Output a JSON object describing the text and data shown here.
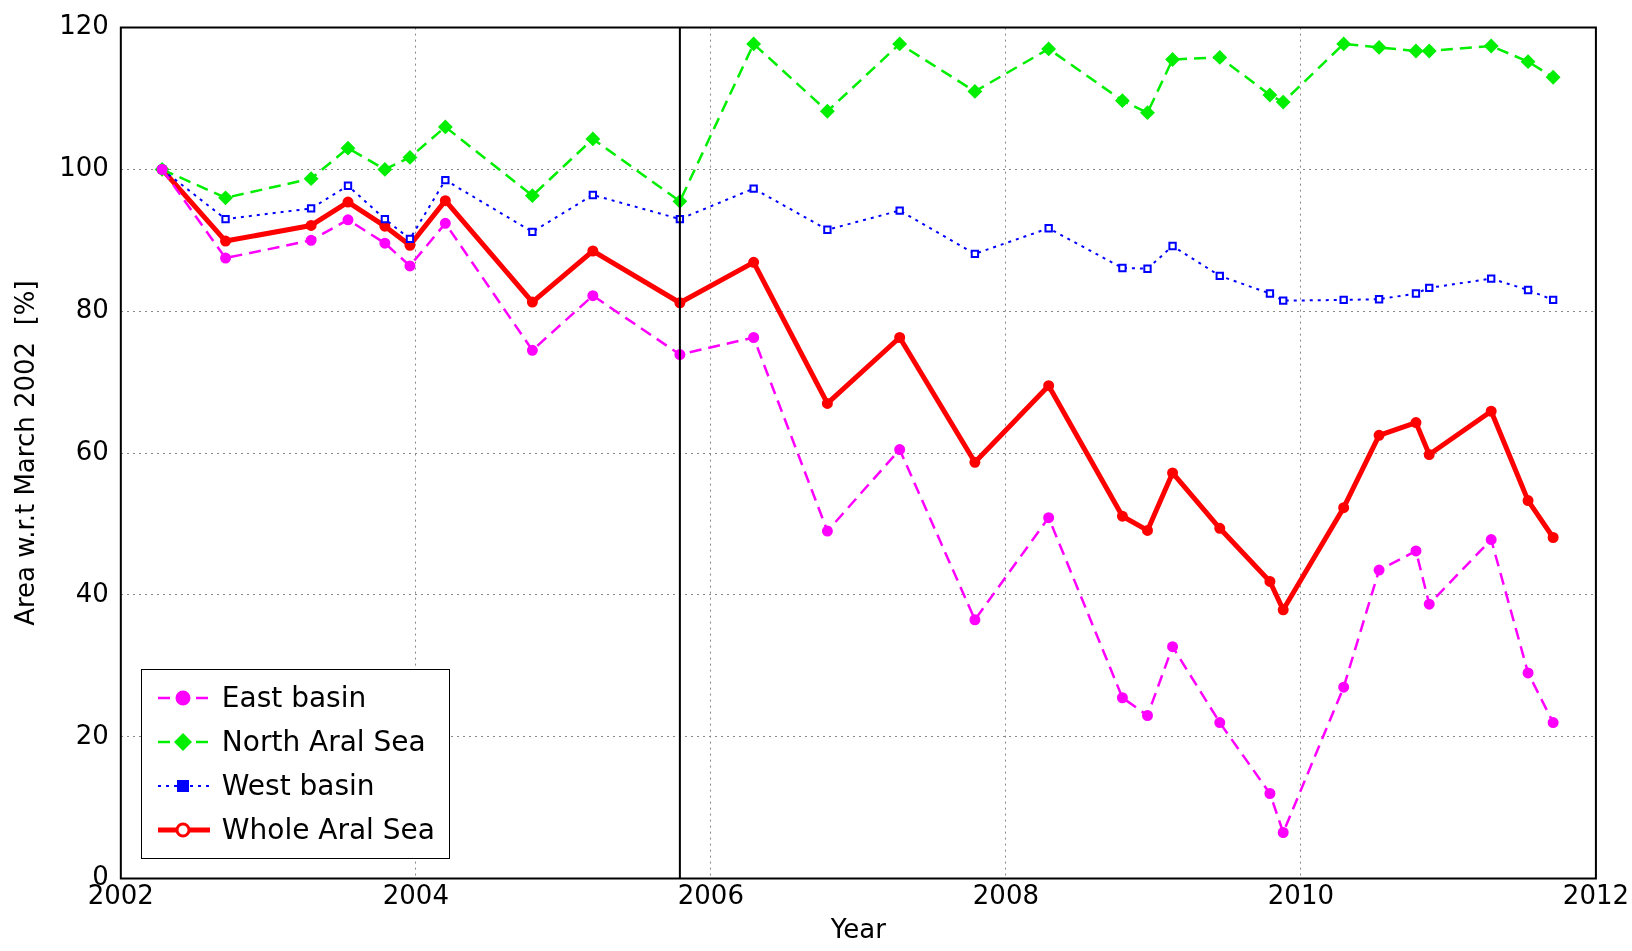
{
  "chart_data": {
    "type": "line",
    "xlabel": "Year",
    "ylabel": "Area w.r.t March 2002  [%]",
    "x": [
      2002.28,
      2002.71,
      2003.29,
      2003.54,
      2003.79,
      2003.96,
      2004.2,
      2004.79,
      2005.2,
      2005.79,
      2006.29,
      2006.79,
      2007.28,
      2007.79,
      2008.29,
      2008.79,
      2008.96,
      2009.13,
      2009.45,
      2009.79,
      2009.88,
      2010.29,
      2010.53,
      2010.78,
      2010.87,
      2011.29,
      2011.54,
      2011.71
    ],
    "series": [
      {
        "name": "East basin",
        "color": "#ff00ff",
        "marker": "circle",
        "line_style": "dashed",
        "values": [
          100,
          87.5,
          90,
          92.9,
          89.6,
          86.4,
          92.4,
          74.5,
          82.2,
          73.9,
          76.3,
          49,
          60.5,
          36.5,
          50.9,
          25.5,
          23,
          32.7,
          22,
          12,
          6.5,
          27,
          43.5,
          46.2,
          38.7,
          47.8,
          29,
          22
        ]
      },
      {
        "name": "North Aral Sea",
        "color": "#00ee00",
        "marker": "diamond",
        "line_style": "dashed",
        "values": [
          100,
          96,
          98.7,
          103,
          100,
          101.7,
          106,
          96.3,
          104.3,
          95.5,
          117.7,
          108.2,
          117.7,
          111,
          117,
          109.7,
          108,
          115.5,
          115.8,
          110.5,
          109.5,
          117.7,
          117.2,
          116.7,
          116.7,
          117.4,
          115.2,
          113
        ]
      },
      {
        "name": "West basin",
        "color": "#0000ff",
        "marker": "square",
        "line_style": "dotted",
        "values": [
          100,
          93,
          94.5,
          97.7,
          93,
          90.2,
          98.5,
          91.2,
          96.4,
          93,
          97.3,
          91.5,
          94.2,
          88.1,
          91.7,
          86.1,
          86,
          89.2,
          85,
          82.5,
          81.5,
          81.6,
          81.7,
          82.5,
          83.3,
          84.6,
          83,
          81.6
        ]
      },
      {
        "name": "Whole Aral Sea",
        "color": "#ff0000",
        "marker": "circle",
        "line_style": "solid",
        "values": [
          100,
          89.9,
          92.1,
          95.4,
          92,
          89.3,
          95.6,
          81.3,
          88.5,
          81.2,
          86.9,
          67,
          76.3,
          58.7,
          69.5,
          51.1,
          49.1,
          57.2,
          49.4,
          41.9,
          37.9,
          52.3,
          62.5,
          64.3,
          59.8,
          65.9,
          53.3,
          48.1
        ]
      }
    ],
    "xlim": [
      2002,
      2012
    ],
    "xticks": [
      2002,
      2004,
      2006,
      2008,
      2010,
      2012
    ],
    "ylim": [
      0,
      120
    ],
    "yticks": [
      0,
      20,
      40,
      60,
      80,
      100,
      120
    ],
    "ref_lines": [
      {
        "axis": "x",
        "value": 2005.79,
        "color": "#000000"
      }
    ],
    "grid": true,
    "legend": "bottom left"
  }
}
